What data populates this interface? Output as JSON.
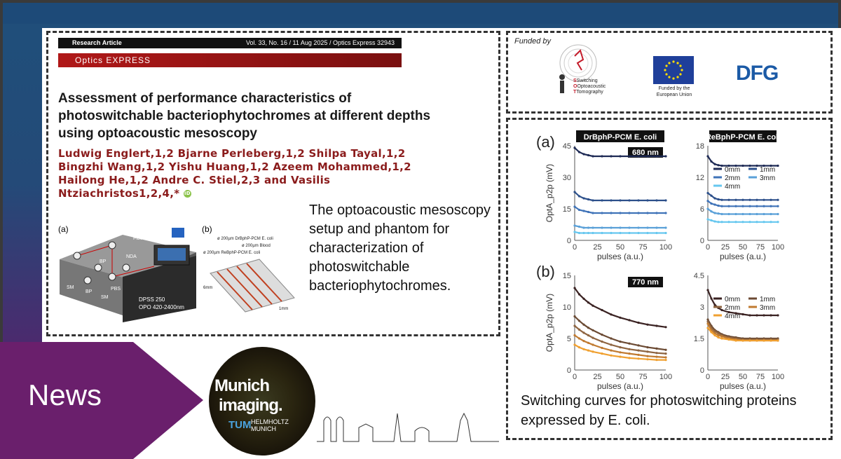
{
  "news_label": "News",
  "paper": {
    "article_type": "Research Article",
    "citation": "Vol. 33, No. 16 / 11 Aug 2025 / Optics Express 32943",
    "journal": "Optics EXPRESS",
    "title": "Assessment of performance characteristics of photoswitchable bacteriophytochromes at different depths using optoacoustic mesoscopy",
    "authors_line1": "Ludwig Englert,1,2 Bjarne Perleberg,1,2 Shilpa Tayal,1,2",
    "authors_line2": "Bingzhi Wang,1,2 Yishu Huang,1,2 Azeem Mohammed,1,2",
    "authors_line3": "Hailong He,1,2 Andre C. Stiel,2,3 and Vasilis",
    "authors_line4": "Ntziachristos1,2,4,*",
    "fig_a": "(a)",
    "fig_b": "(b)",
    "setup_labels": [
      "SM",
      "Fiber",
      "PBS",
      "BP",
      "SM",
      "US",
      "SM",
      "BP",
      "PBS",
      "SM",
      "NDA",
      "DPSS 250",
      "OPO 420-2400nm"
    ],
    "phantom_labels": [
      "ø 200µm DrBphP-PCM E. coli",
      "ø 200µm Blood",
      "ø 200µm ReBphP-PCM E. coli",
      "6mm",
      "1mm"
    ]
  },
  "caption_left": "The optoacoustic mesoscopy setup and phantom for characterization of photoswitchable bacteriophytochromes.",
  "funding": {
    "funded_by": "Funded by",
    "sot_lines": [
      "Switching",
      "Optoacoustic",
      "Tomography"
    ],
    "eu_text": "Funded by the European Union",
    "dfg": "DFG"
  },
  "caption_right": "Switching curves for photoswitching proteins expressed by E. coli.",
  "munich": {
    "line1": "Munich",
    "line2": "imaging.",
    "tum": "TUM",
    "helmholtz": "HELMHOLTZ",
    "munich_small": "MUNICH"
  },
  "chart_data": [
    {
      "type": "line",
      "panel": "(a)",
      "title": "DrBphP-PCM E. coli",
      "annotation": "680 nm",
      "xlabel": "pulses (a.u.)",
      "ylabel": "OptA_p2p (mV)",
      "xlim": [
        0,
        100
      ],
      "ylim": [
        0,
        45
      ],
      "xticks": [
        0,
        25,
        50,
        75,
        100
      ],
      "yticks": [
        0,
        15,
        30,
        45
      ],
      "x": [
        0,
        5,
        10,
        15,
        20,
        30,
        40,
        50,
        60,
        70,
        80,
        90,
        100
      ],
      "series": [
        {
          "name": "0mm",
          "color": "#1e2a55",
          "values": [
            44,
            42,
            41,
            40.5,
            40,
            40,
            40,
            40,
            40,
            40,
            40,
            40,
            40
          ]
        },
        {
          "name": "1mm",
          "color": "#2c4f8a",
          "values": [
            23,
            21,
            20,
            19.5,
            19,
            19,
            19,
            19,
            19,
            19,
            19,
            19,
            19
          ]
        },
        {
          "name": "2mm",
          "color": "#3f73b8",
          "values": [
            16,
            14.5,
            14,
            13.5,
            13,
            13,
            13,
            13,
            13,
            13,
            13,
            13,
            13
          ]
        },
        {
          "name": "3mm",
          "color": "#5aa0d8",
          "values": [
            7,
            6.5,
            6,
            6,
            6,
            6,
            6,
            6,
            6,
            6,
            6,
            6,
            6
          ]
        },
        {
          "name": "4mm",
          "color": "#66c7ef",
          "values": [
            4,
            3.5,
            3.5,
            3.5,
            3.5,
            3.5,
            3.5,
            3.5,
            3.5,
            3.5,
            3.5,
            3.5,
            3.5
          ]
        }
      ]
    },
    {
      "type": "line",
      "panel": "(a)",
      "title": "ReBphP-PCM E. coli",
      "xlabel": "pulses (a.u.)",
      "xlim": [
        0,
        100
      ],
      "ylim": [
        0,
        18
      ],
      "xticks": [
        0,
        25,
        50,
        75,
        100
      ],
      "yticks": [
        0,
        6,
        12,
        18
      ],
      "legend": [
        "0mm",
        "1mm",
        "2mm",
        "3mm",
        "4mm"
      ],
      "x": [
        0,
        5,
        10,
        15,
        20,
        30,
        40,
        50,
        60,
        70,
        80,
        90,
        100
      ],
      "series": [
        {
          "name": "0mm",
          "color": "#1e2a55",
          "values": [
            16,
            15,
            14.5,
            14.3,
            14.2,
            14.2,
            14.2,
            14.2,
            14.2,
            14.2,
            14.2,
            14.2,
            14.2
          ]
        },
        {
          "name": "1mm",
          "color": "#2c4f8a",
          "values": [
            9,
            8.5,
            8,
            7.8,
            7.7,
            7.7,
            7.7,
            7.7,
            7.7,
            7.7,
            7.7,
            7.7,
            7.7
          ]
        },
        {
          "name": "2mm",
          "color": "#3f73b8",
          "values": [
            7.5,
            7,
            6.8,
            6.6,
            6.5,
            6.5,
            6.5,
            6.5,
            6.5,
            6.5,
            6.5,
            6.5,
            6.5
          ]
        },
        {
          "name": "3mm",
          "color": "#5aa0d8",
          "values": [
            6,
            5.5,
            5.2,
            5.1,
            5,
            5,
            5,
            5,
            5,
            5,
            5,
            5,
            5
          ]
        },
        {
          "name": "4mm",
          "color": "#66c7ef",
          "values": [
            4,
            3.8,
            3.6,
            3.5,
            3.5,
            3.5,
            3.5,
            3.5,
            3.5,
            3.5,
            3.5,
            3.5,
            3.5
          ]
        }
      ]
    },
    {
      "type": "line",
      "panel": "(b)",
      "annotation": "770 nm",
      "xlabel": "pulses (a.u.)",
      "ylabel": "OptA_p2p (mV)",
      "xlim": [
        0,
        100
      ],
      "ylim": [
        0,
        15
      ],
      "xticks": [
        0,
        25,
        50,
        75,
        100
      ],
      "yticks": [
        0,
        5,
        10,
        15
      ],
      "x": [
        0,
        5,
        10,
        15,
        20,
        30,
        40,
        50,
        60,
        70,
        80,
        90,
        100
      ],
      "series": [
        {
          "name": "0mm",
          "color": "#3a2222",
          "values": [
            13,
            12,
            11.3,
            10.7,
            10.2,
            9.5,
            8.8,
            8.3,
            7.9,
            7.5,
            7.2,
            7,
            6.8
          ]
        },
        {
          "name": "1mm",
          "color": "#6b4a33",
          "values": [
            8.5,
            7.8,
            7.2,
            6.7,
            6.3,
            5.6,
            5,
            4.5,
            4.2,
            3.9,
            3.6,
            3.4,
            3.2
          ]
        },
        {
          "name": "2mm",
          "color": "#8e6440",
          "values": [
            7,
            6.4,
            5.9,
            5.5,
            5.1,
            4.5,
            4,
            3.6,
            3.3,
            3.1,
            2.9,
            2.7,
            2.6
          ]
        },
        {
          "name": "3mm",
          "color": "#c07a30",
          "values": [
            5.5,
            5,
            4.6,
            4.3,
            4,
            3.5,
            3.1,
            2.8,
            2.6,
            2.4,
            2.2,
            2.1,
            2
          ]
        },
        {
          "name": "4mm",
          "color": "#f0a030",
          "values": [
            4,
            3.6,
            3.3,
            3.1,
            2.9,
            2.6,
            2.3,
            2.1,
            1.9,
            1.8,
            1.7,
            1.6,
            1.6
          ]
        }
      ]
    },
    {
      "type": "line",
      "panel": "(b)",
      "xlabel": "pulses (a.u.)",
      "xlim": [
        0,
        100
      ],
      "ylim": [
        0,
        4.5
      ],
      "xticks": [
        0,
        25,
        50,
        75,
        100
      ],
      "yticks": [
        0,
        1.5,
        3,
        4.5
      ],
      "legend": [
        "0mm",
        "1mm",
        "2mm",
        "3mm",
        "4mm"
      ],
      "x": [
        0,
        5,
        10,
        15,
        20,
        30,
        40,
        50,
        60,
        70,
        80,
        90,
        100
      ],
      "series": [
        {
          "name": "0mm",
          "color": "#3a2222",
          "values": [
            3.8,
            3.4,
            3.1,
            2.95,
            2.85,
            2.75,
            2.7,
            2.65,
            2.6,
            2.6,
            2.6,
            2.6,
            2.6
          ]
        },
        {
          "name": "1mm",
          "color": "#6b4a33",
          "values": [
            2.4,
            2.1,
            1.9,
            1.8,
            1.7,
            1.6,
            1.55,
            1.5,
            1.5,
            1.5,
            1.5,
            1.5,
            1.5
          ]
        },
        {
          "name": "2mm",
          "color": "#8e6440",
          "values": [
            2.3,
            2,
            1.85,
            1.75,
            1.65,
            1.55,
            1.5,
            1.45,
            1.45,
            1.45,
            1.45,
            1.45,
            1.45
          ]
        },
        {
          "name": "3mm",
          "color": "#c07a30",
          "values": [
            2.2,
            1.9,
            1.75,
            1.65,
            1.6,
            1.5,
            1.45,
            1.4,
            1.4,
            1.4,
            1.4,
            1.4,
            1.4
          ]
        },
        {
          "name": "4mm",
          "color": "#f0a030",
          "values": [
            2,
            1.8,
            1.65,
            1.55,
            1.5,
            1.45,
            1.4,
            1.4,
            1.4,
            1.4,
            1.4,
            1.4,
            1.4
          ]
        }
      ]
    }
  ]
}
